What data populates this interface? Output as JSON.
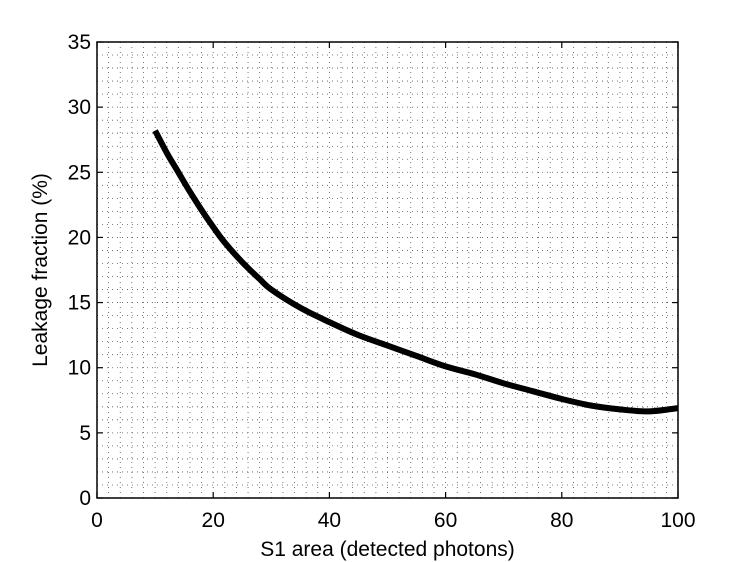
{
  "chart_data": {
    "type": "line",
    "title": "",
    "xlabel": "S1 area (detected photons)",
    "ylabel": "Leakage fraction (%)",
    "xlim": [
      0,
      100
    ],
    "ylim": [
      0,
      35
    ],
    "x_ticks": [
      0,
      20,
      40,
      60,
      80,
      100
    ],
    "y_ticks": [
      0,
      5,
      10,
      15,
      20,
      25,
      30,
      35
    ],
    "x_minor_grid_step": 2,
    "y_minor_grid_step": 1,
    "grid": "dotted",
    "line_color": "#000000",
    "series": [
      {
        "x": [
          10,
          12,
          14,
          16,
          18,
          20,
          22,
          25,
          28,
          30,
          35,
          40,
          45,
          50,
          55,
          60,
          65,
          70,
          75,
          80,
          85,
          90,
          95,
          100
        ],
        "y": [
          28.2,
          26.5,
          25.0,
          23.5,
          22.1,
          20.8,
          19.6,
          18.1,
          16.8,
          16.0,
          14.6,
          13.5,
          12.5,
          11.7,
          10.9,
          10.1,
          9.5,
          8.8,
          8.2,
          7.6,
          7.1,
          6.8,
          6.65,
          6.9
        ]
      }
    ]
  }
}
